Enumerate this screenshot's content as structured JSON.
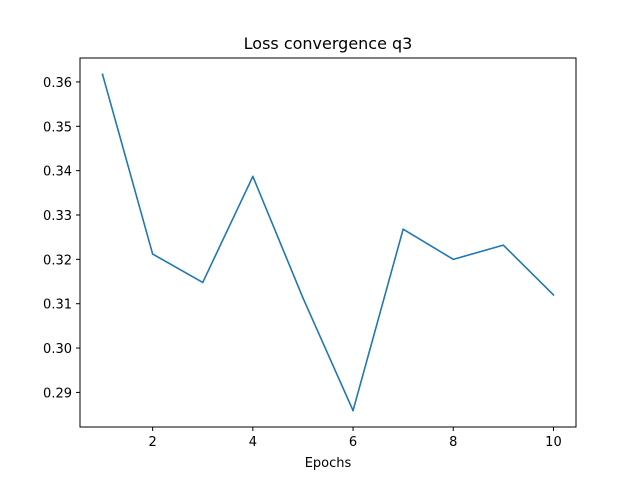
{
  "chart_data": {
    "type": "line",
    "title": "Loss convergence q3",
    "xlabel": "Epochs",
    "ylabel": "",
    "xlim": [
      0.55,
      10.45
    ],
    "ylim": [
      0.2822,
      0.3654
    ],
    "xticks": [
      2,
      4,
      6,
      8,
      10
    ],
    "xtick_labels": [
      "2",
      "4",
      "6",
      "8",
      "10"
    ],
    "yticks": [
      0.29,
      0.3,
      0.31,
      0.32,
      0.33,
      0.34,
      0.35,
      0.36
    ],
    "ytick_labels": [
      "0.29",
      "0.30",
      "0.31",
      "0.32",
      "0.33",
      "0.34",
      "0.35",
      "0.36"
    ],
    "grid": false,
    "legend": "none",
    "series": [
      {
        "color": "#1f77b4",
        "x": [
          1,
          2,
          3,
          4,
          5,
          6,
          7,
          8,
          9,
          10
        ],
        "values": [
          0.3617,
          0.3212,
          0.3148,
          0.3387,
          0.3113,
          0.2859,
          0.3268,
          0.32,
          0.3232,
          0.312
        ]
      }
    ]
  }
}
